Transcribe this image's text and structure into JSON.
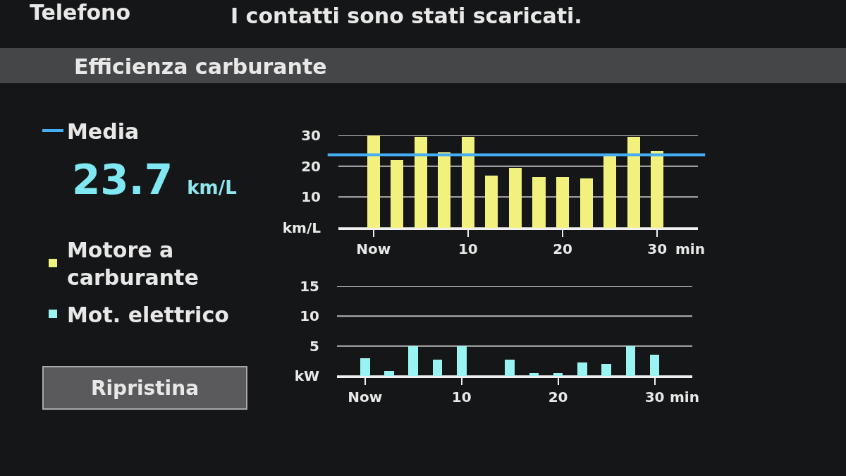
{
  "chart_data": [
    {
      "type": "bar",
      "title": "Efficienza carburante",
      "x": [
        0,
        2.5,
        5,
        7.5,
        10,
        12.5,
        15,
        17.5,
        20,
        22.5,
        25,
        27.5,
        30
      ],
      "series": [
        {
          "name": "Motore a carburante",
          "color": "#f3f17e",
          "values": [
            30,
            22,
            29.5,
            24.5,
            29.5,
            17,
            19.5,
            16.5,
            16.5,
            16,
            24,
            29.5,
            25
          ]
        }
      ],
      "xlim": [
        -3.7,
        34.3
      ],
      "xticks": [
        {
          "value": 0,
          "label": "Now"
        },
        10,
        20,
        30
      ],
      "xlabel": "min",
      "ylim": [
        0,
        30
      ],
      "yticks": [
        {
          "value": 0,
          "label": "km/L"
        },
        10,
        20,
        30
      ],
      "grid": "y",
      "legend": "left",
      "ref_lines": [
        {
          "axis": "y",
          "value": 23.7,
          "label": "Media",
          "color": "#45aef5"
        }
      ],
      "annotations": [
        "Telefono",
        "I contatti sono stati scaricati.",
        "23.7 km/L",
        "Ripristina"
      ]
    },
    {
      "type": "bar",
      "x": [
        0,
        2.5,
        5,
        7.5,
        10,
        12.5,
        15,
        17.5,
        20,
        22.5,
        25,
        27.5,
        30
      ],
      "series": [
        {
          "name": "Mot. elettrico",
          "color": "#9af3f3",
          "values": [
            3,
            0.8,
            5,
            2.7,
            5,
            0,
            2.7,
            0.5,
            0.5,
            2.2,
            2,
            5,
            3.5
          ]
        }
      ],
      "xlim": [
        -2.9,
        33.9
      ],
      "xticks": [
        {
          "value": 0,
          "label": "Now"
        },
        10,
        20,
        30
      ],
      "xlabel": "min",
      "ylim": [
        0,
        15
      ],
      "yticks": [
        {
          "value": 0,
          "label": "kW"
        },
        5,
        10,
        15
      ],
      "grid": "y",
      "legend": "left"
    }
  ]
}
